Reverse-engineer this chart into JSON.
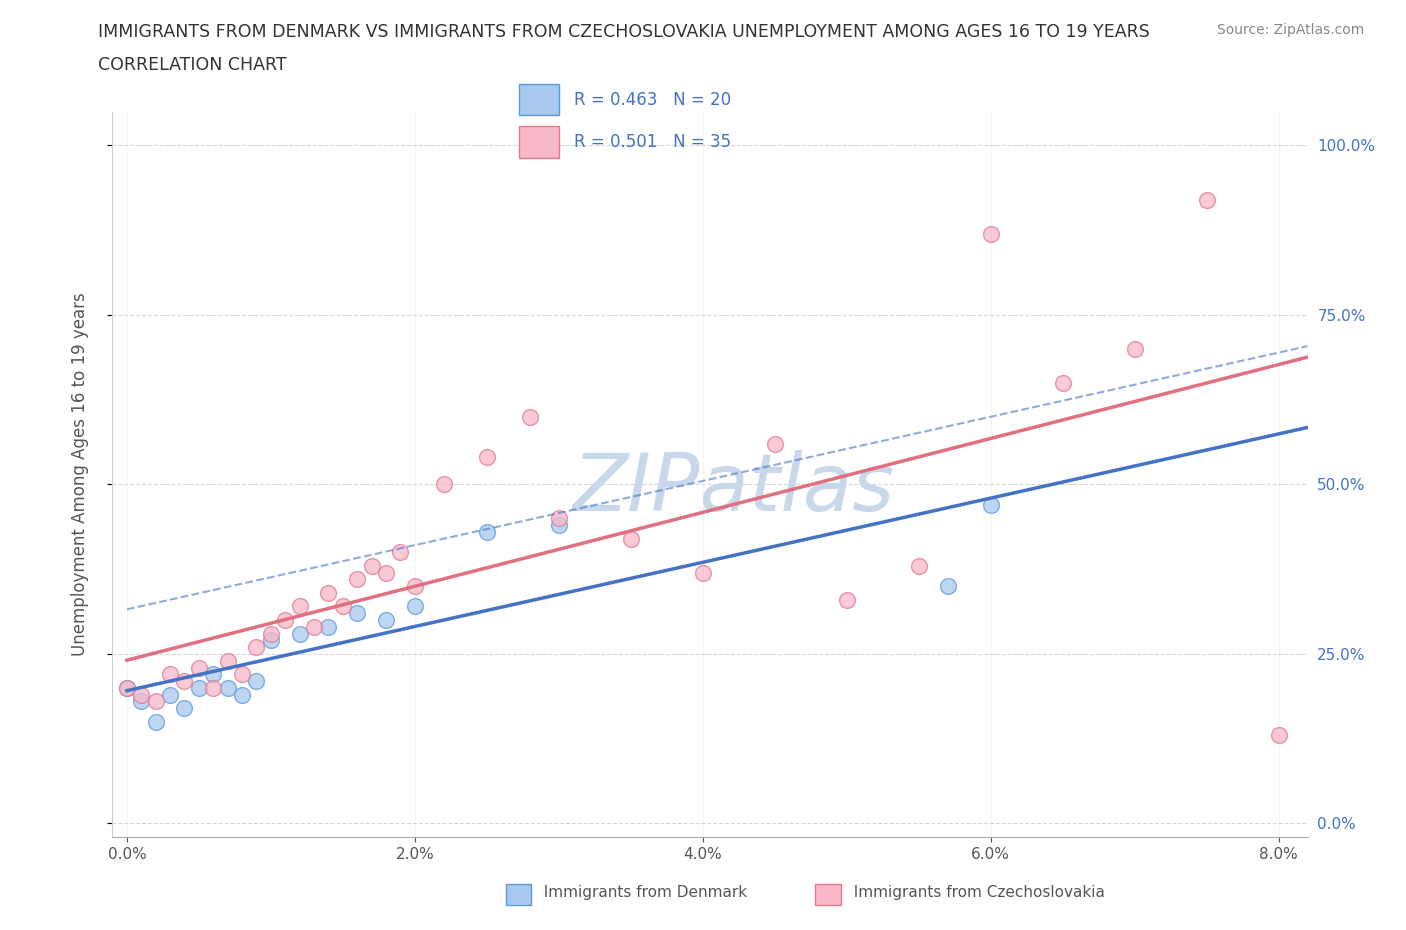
{
  "title": "IMMIGRANTS FROM DENMARK VS IMMIGRANTS FROM CZECHOSLOVAKIA UNEMPLOYMENT AMONG AGES 16 TO 19 YEARS",
  "subtitle": "CORRELATION CHART",
  "source": "Source: ZipAtlas.com",
  "ylabel": "Unemployment Among Ages 16 to 19 years",
  "xlim": [
    -0.001,
    0.082
  ],
  "ylim": [
    -0.02,
    1.05
  ],
  "xticks": [
    0.0,
    0.02,
    0.04,
    0.06,
    0.08
  ],
  "xtick_labels": [
    "0.0%",
    "2.0%",
    "4.0%",
    "6.0%",
    "8.0%"
  ],
  "yticks": [
    0.0,
    0.25,
    0.5,
    0.75,
    1.0
  ],
  "ytick_labels": [
    "0.0%",
    "25.0%",
    "50.0%",
    "75.0%",
    "100.0%"
  ],
  "denmark_fill_color": "#a8c8f0",
  "denmark_edge_color": "#5b9bd5",
  "czechoslovakia_fill_color": "#f8b8c8",
  "czechoslovakia_edge_color": "#e07890",
  "denmark_line_color": "#4472c4",
  "czechoslovakia_line_color": "#e07080",
  "right_axis_color": "#4472c4",
  "denmark_R": 0.463,
  "denmark_N": 20,
  "czechoslovakia_R": 0.501,
  "czechoslovakia_N": 35,
  "watermark": "ZIPatlas",
  "watermark_color": "#c8d8ea",
  "background_color": "#ffffff",
  "grid_color": "#cccccc",
  "denmark_x": [
    0.0,
    0.001,
    0.002,
    0.003,
    0.004,
    0.005,
    0.006,
    0.007,
    0.008,
    0.009,
    0.01,
    0.012,
    0.014,
    0.016,
    0.018,
    0.02,
    0.025,
    0.03,
    0.057,
    0.06
  ],
  "denmark_y": [
    0.2,
    0.18,
    0.15,
    0.19,
    0.17,
    0.2,
    0.22,
    0.2,
    0.19,
    0.21,
    0.27,
    0.28,
    0.29,
    0.31,
    0.3,
    0.32,
    0.43,
    0.44,
    0.35,
    0.47
  ],
  "czechoslovakia_x": [
    0.0,
    0.001,
    0.002,
    0.003,
    0.004,
    0.005,
    0.006,
    0.007,
    0.008,
    0.009,
    0.01,
    0.011,
    0.012,
    0.013,
    0.014,
    0.015,
    0.016,
    0.017,
    0.018,
    0.019,
    0.02,
    0.022,
    0.025,
    0.028,
    0.03,
    0.035,
    0.04,
    0.045,
    0.05,
    0.055,
    0.06,
    0.065,
    0.07,
    0.075,
    0.08
  ],
  "czechoslovakia_y": [
    0.2,
    0.19,
    0.18,
    0.22,
    0.21,
    0.23,
    0.2,
    0.24,
    0.22,
    0.26,
    0.28,
    0.3,
    0.32,
    0.29,
    0.34,
    0.32,
    0.36,
    0.38,
    0.37,
    0.4,
    0.35,
    0.5,
    0.54,
    0.6,
    0.45,
    0.42,
    0.37,
    0.56,
    0.33,
    0.38,
    0.87,
    0.65,
    0.7,
    0.92,
    0.13
  ],
  "legend_label_denmark": "Immigrants from Denmark",
  "legend_label_czechoslovakia": "Immigrants from Czechoslovakia"
}
